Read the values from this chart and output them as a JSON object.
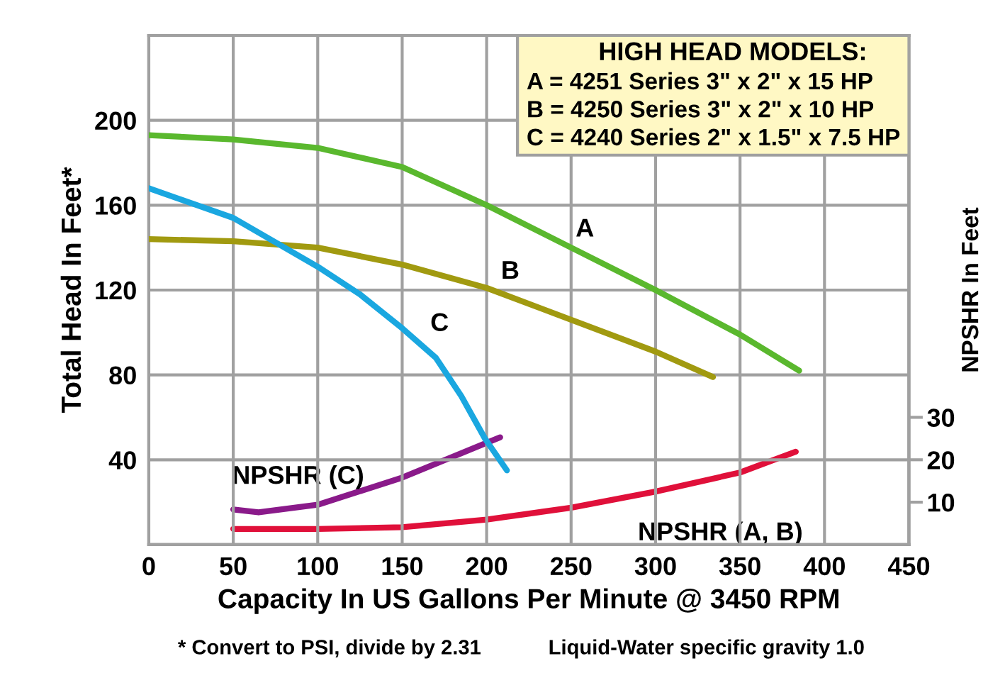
{
  "chart_data": {
    "type": "line",
    "xlabel": "Capacity In US Gallons Per Minute @ 3450 RPM",
    "ylabel": "Total Head In Feet*",
    "y2label": "NPSHR In Feet",
    "xlim": [
      0,
      450
    ],
    "xticks": [
      0,
      50,
      100,
      150,
      200,
      250,
      300,
      350,
      400,
      450
    ],
    "ylim": [
      0,
      240
    ],
    "yticks": [
      40,
      80,
      120,
      160,
      200
    ],
    "y2lim": [
      0,
      120
    ],
    "y2ticks": [
      10,
      20,
      30
    ],
    "grid": true,
    "marker": "none",
    "line_style": "solid",
    "series": [
      {
        "name": "A",
        "color": "#5ab82e",
        "x": [
          0,
          50,
          100,
          150,
          200,
          250,
          300,
          350,
          385
        ],
        "values": [
          193,
          191,
          187,
          178,
          160,
          140,
          120,
          99,
          82
        ]
      },
      {
        "name": "B",
        "color": "#a19a10",
        "x": [
          0,
          50,
          100,
          150,
          200,
          250,
          300,
          334
        ],
        "values": [
          144,
          143,
          140,
          132,
          121,
          106,
          91,
          79
        ]
      },
      {
        "name": "C",
        "color": "#1aa7e0",
        "x": [
          0,
          50,
          100,
          125,
          150,
          170,
          185,
          199,
          212
        ],
        "values": [
          168,
          154,
          131,
          118,
          102,
          88,
          70,
          50,
          35
        ]
      },
      {
        "name": "NPSHR (C)",
        "color": "#8a1a8a",
        "axis": "y2",
        "x": [
          50,
          65,
          100,
          150,
          200,
          208
        ],
        "values": [
          8.3,
          7.6,
          9.4,
          15.8,
          24,
          25.3
        ]
      },
      {
        "name": "NPSHR (A, B)",
        "color": "#e0103a",
        "axis": "y2",
        "x": [
          50,
          100,
          150,
          200,
          250,
          300,
          350,
          383
        ],
        "values": [
          3.7,
          3.7,
          4.1,
          5.9,
          8.7,
          12.5,
          17,
          21.9
        ]
      }
    ],
    "annotations": [
      "HIGH HEAD MODELS:",
      "A = 4251 Series 3\" x 2\" x 15 HP",
      "B = 4250 Series 3\" x 2\" x 10 HP",
      "C = 4240 Series 2\" x 1.5\" x 7.5 HP",
      "* Convert to PSI, divide by 2.31",
      "Liquid-Water specific gravity 1.0"
    ]
  }
}
